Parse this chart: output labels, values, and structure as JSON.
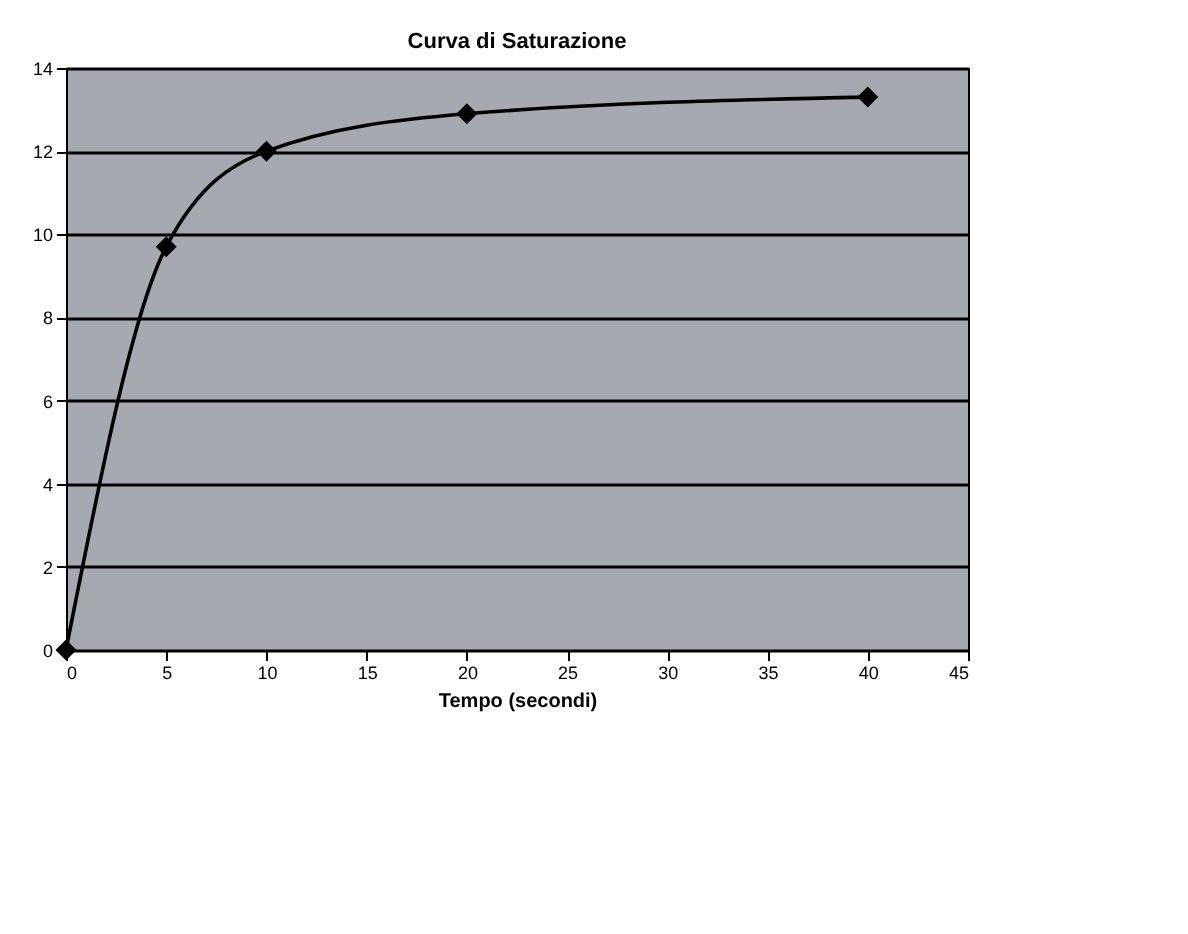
{
  "chart_data": {
    "type": "line",
    "title": "Curva di Saturazione",
    "xlabel": "Tempo (secondi)",
    "x": [
      0,
      5,
      10,
      20,
      40
    ],
    "series": [
      {
        "color": "#000000",
        "values": [
          0,
          9.7,
          12.0,
          12.9,
          13.3
        ]
      }
    ],
    "xlim": [
      0,
      45
    ],
    "xticks": [
      0,
      5,
      10,
      15,
      20,
      25,
      30,
      35,
      40,
      45
    ],
    "ylim": [
      0,
      14
    ],
    "yticks": [
      0,
      2,
      4,
      6,
      8,
      10,
      12,
      14
    ],
    "grid": "y",
    "marker": "diamond",
    "line_style": "solid",
    "legend": false
  }
}
